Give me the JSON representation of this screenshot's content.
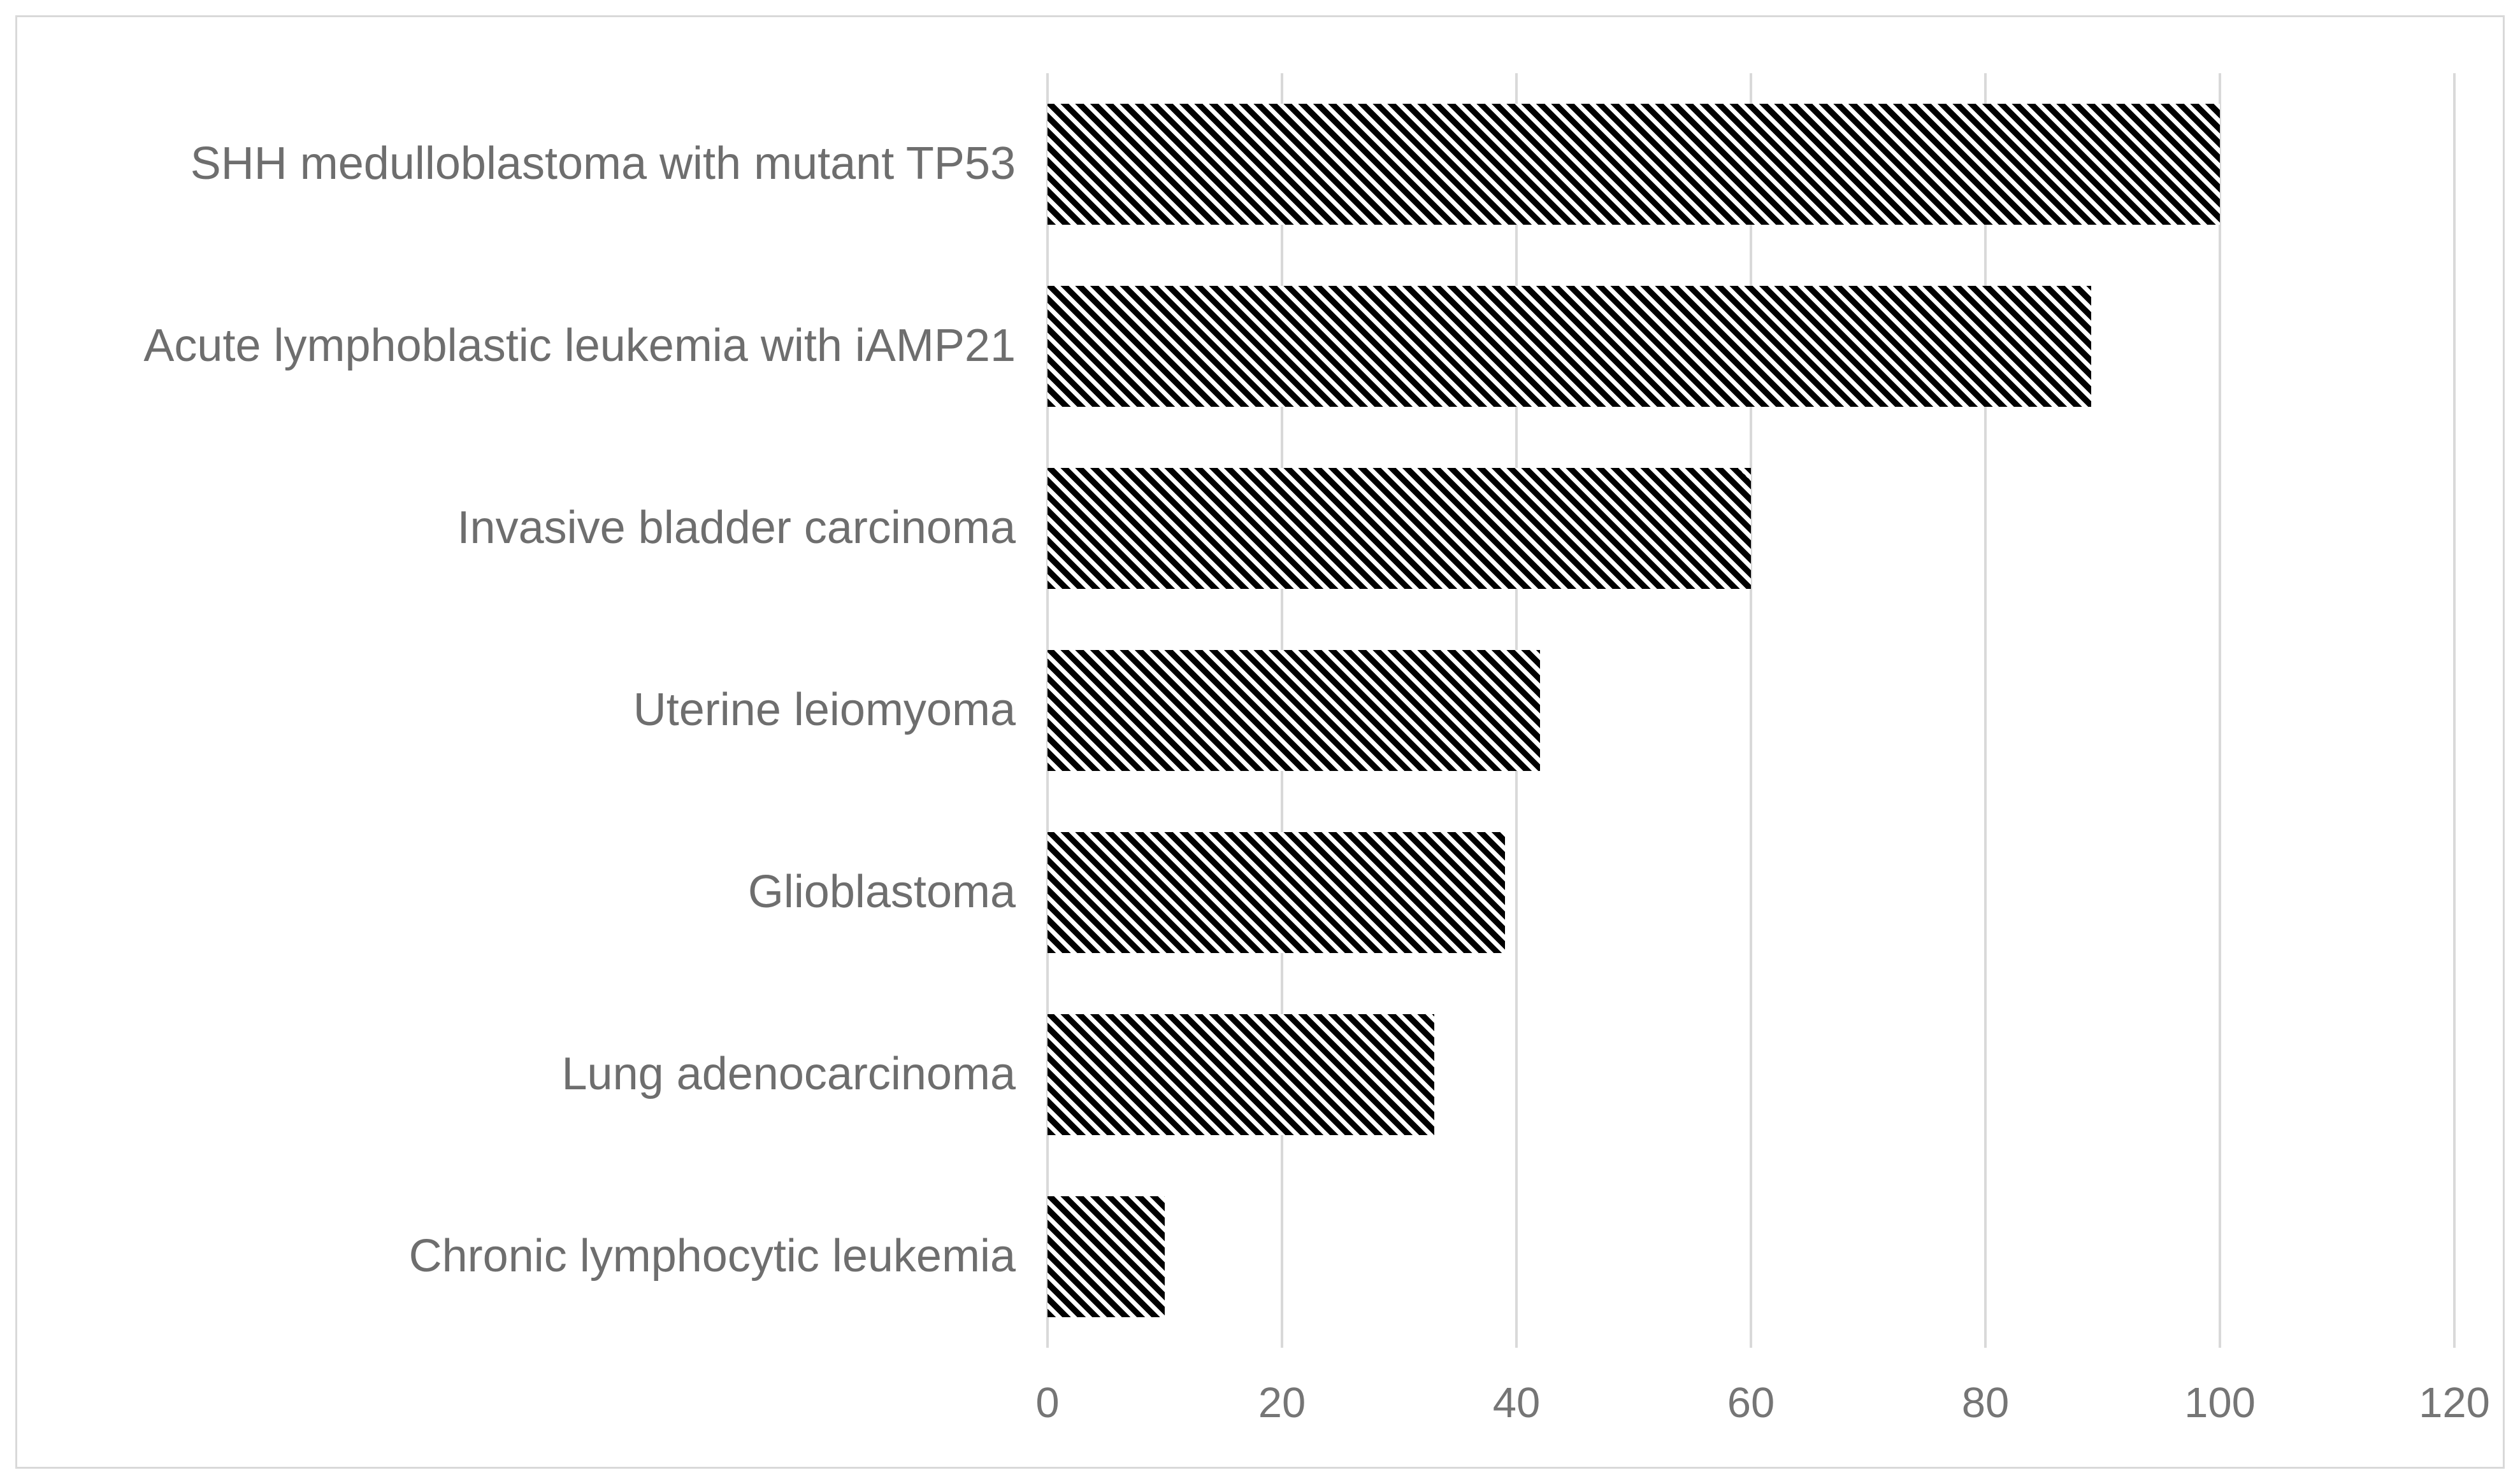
{
  "chart_data": {
    "type": "bar",
    "orientation": "horizontal",
    "title": "",
    "xlabel": "",
    "ylabel": "",
    "categories": [
      "SHH medulloblastoma with mutant TP53",
      "Acute lymphoblastic leukemia with iAMP21",
      "Invasive bladder carcinoma",
      "Uterine leiomyoma",
      "Glioblastoma",
      "Lung adenocarcinoma",
      "Chronic lymphocytic leukemia"
    ],
    "values": [
      100,
      89,
      60,
      42,
      39,
      33,
      10
    ],
    "xlim": [
      0,
      120
    ],
    "x_ticks": [
      0,
      20,
      40,
      60,
      80,
      100,
      120
    ],
    "grid": "vertical-only",
    "legend": "none",
    "bar_fill": "black-white-diagonal-hatch",
    "hatch_direction": "top-left-to-bottom-right",
    "colors": {
      "hatch": "#000000",
      "background": "#ffffff",
      "gridline": "#d9d9d9",
      "frame_border": "#d9d9d9",
      "label_text": "#6e6e6e",
      "tick_text": "#757575"
    }
  }
}
